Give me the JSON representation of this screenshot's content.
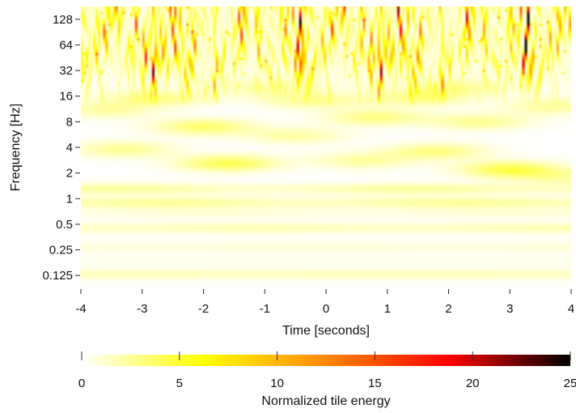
{
  "chart_data": {
    "type": "heatmap",
    "title": "",
    "xlabel": "Time [seconds]",
    "ylabel": "Frequency [Hz]",
    "xlim": [
      -4,
      4
    ],
    "x_ticks": [
      -4,
      -3,
      -2,
      -1,
      0,
      1,
      2,
      3,
      4
    ],
    "y_scale": "log2",
    "ylim": [
      0.0884,
      181
    ],
    "y_ticks": [
      {
        "value": 0.125,
        "label": "0.125"
      },
      {
        "value": 0.25,
        "label": "0.25"
      },
      {
        "value": 0.5,
        "label": "0.5"
      },
      {
        "value": 1,
        "label": "1"
      },
      {
        "value": 2,
        "label": "2"
      },
      {
        "value": 4,
        "label": "4"
      },
      {
        "value": 8,
        "label": "8"
      },
      {
        "value": 16,
        "label": "16"
      },
      {
        "value": 32,
        "label": "32"
      },
      {
        "value": 64,
        "label": "64"
      },
      {
        "value": 128,
        "label": "128"
      }
    ],
    "colorbar": {
      "label": "Normalized tile energy",
      "range": [
        0,
        25
      ],
      "ticks": [
        0,
        5,
        10,
        15,
        20,
        25
      ],
      "colormap": [
        "#ffffff",
        "#ffff00",
        "#ff8800",
        "#ff0000",
        "#000000"
      ]
    },
    "bands": [
      {
        "freq": 0.13,
        "energy": 1.6,
        "mod": 0.05
      },
      {
        "freq": 0.19,
        "energy": 0.4,
        "mod": 0.05
      },
      {
        "freq": 0.27,
        "energy": 0.9,
        "mod": 0.1
      },
      {
        "freq": 0.45,
        "energy": 1.6,
        "mod": 0.15
      },
      {
        "freq": 0.68,
        "energy": 0.8,
        "mod": 0.2
      },
      {
        "freq": 0.9,
        "energy": 2.0,
        "mod": 0.25
      },
      {
        "freq": 1.3,
        "energy": 1.8,
        "mod": 0.3
      }
    ],
    "blobs": [
      {
        "t": -3.3,
        "f": 3.8,
        "energy": 2.6
      },
      {
        "t": -1.6,
        "f": 2.6,
        "energy": 4.2
      },
      {
        "t": -2.0,
        "f": 7.0,
        "energy": 3.5
      },
      {
        "t": -0.5,
        "f": 5.5,
        "energy": 2.2
      },
      {
        "t": 0.6,
        "f": 2.8,
        "energy": 2.3
      },
      {
        "t": 0.8,
        "f": 9.0,
        "energy": 3.0
      },
      {
        "t": -3.6,
        "f": 11.0,
        "energy": 2.2
      },
      {
        "t": 1.8,
        "f": 3.6,
        "energy": 3.0
      },
      {
        "t": 3.0,
        "f": 2.2,
        "energy": 4.4
      },
      {
        "t": 2.5,
        "f": 8.0,
        "energy": 2.6
      },
      {
        "t": -0.2,
        "f": 14.0,
        "energy": 2.4
      },
      {
        "t": 1.5,
        "f": 15.0,
        "energy": 2.5
      },
      {
        "t": 3.7,
        "f": 12.0,
        "energy": 2.3
      },
      {
        "t": -2.8,
        "f": 15.0,
        "energy": 2.7
      },
      {
        "t": -1.0,
        "f": 20.0,
        "energy": 1.8
      },
      {
        "t": 2.1,
        "f": 20.0,
        "energy": 2.2
      },
      {
        "t": 3.9,
        "f": 1.8,
        "energy": 2.0
      }
    ]
  }
}
